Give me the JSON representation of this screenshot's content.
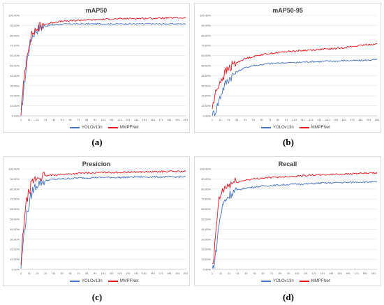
{
  "captions": [
    "(a)",
    "(b)",
    "(c)",
    "(d)"
  ],
  "colors": {
    "yolo": "#4472c4",
    "mmpf": "#e8141e",
    "grid": "#e3e3e3",
    "axis": "#bfbfbf"
  },
  "chart_data": [
    {
      "type": "line",
      "title": "mAP50",
      "y_ticks": [
        "0.00%",
        "10.00%",
        "20.00%",
        "30.00%",
        "40.00%",
        "50.00%",
        "60.00%",
        "70.00%",
        "80.00%",
        "90.00%",
        "100.00%"
      ],
      "x_ticks": [
        "1",
        "11",
        "21",
        "31",
        "41",
        "51",
        "61",
        "71",
        "81",
        "91",
        "101",
        "111",
        "121",
        "131",
        "141",
        "151",
        "161",
        "171",
        "181",
        "191",
        "201"
      ],
      "ylim": [
        0,
        1.0
      ],
      "xlim": [
        1,
        201
      ],
      "legend": [
        "YOLOv13n",
        "MMPFNet"
      ],
      "series": [
        {
          "name": "YOLOv13n",
          "x": [
            1,
            3,
            5,
            7,
            9,
            11,
            13,
            15,
            18,
            21,
            25,
            30,
            35,
            40,
            50,
            60,
            70,
            80,
            90,
            100,
            120,
            140,
            160,
            180,
            201
          ],
          "values": [
            0.02,
            0.15,
            0.3,
            0.45,
            0.58,
            0.68,
            0.75,
            0.8,
            0.84,
            0.86,
            0.88,
            0.89,
            0.9,
            0.905,
            0.91,
            0.915,
            0.915,
            0.915,
            0.915,
            0.915,
            0.915,
            0.915,
            0.915,
            0.915,
            0.915
          ]
        },
        {
          "name": "MMPFNet",
          "x": [
            1,
            3,
            5,
            7,
            9,
            11,
            13,
            15,
            18,
            21,
            25,
            30,
            35,
            40,
            50,
            60,
            70,
            80,
            90,
            100,
            120,
            140,
            160,
            180,
            201
          ],
          "values": [
            0.03,
            0.2,
            0.38,
            0.52,
            0.64,
            0.72,
            0.78,
            0.82,
            0.85,
            0.87,
            0.89,
            0.91,
            0.92,
            0.93,
            0.94,
            0.945,
            0.95,
            0.955,
            0.955,
            0.96,
            0.965,
            0.97,
            0.97,
            0.975,
            0.975
          ]
        }
      ]
    },
    {
      "type": "line",
      "title": "mAP50-95",
      "y_ticks": [
        "0.00%",
        "10.00%",
        "20.00%",
        "30.00%",
        "40.00%",
        "50.00%",
        "60.00%",
        "70.00%",
        "80.00%",
        "90.00%",
        "100.00%"
      ],
      "x_ticks": [
        "1",
        "11",
        "21",
        "31",
        "41",
        "51",
        "61",
        "71",
        "81",
        "91",
        "101",
        "111",
        "121",
        "131",
        "141",
        "151",
        "161",
        "171",
        "181",
        "191",
        "201"
      ],
      "ylim": [
        0,
        1.0
      ],
      "xlim": [
        1,
        201
      ],
      "legend": [
        "YOLOv13n",
        "MMPFNet"
      ],
      "series": [
        {
          "name": "YOLOv13n",
          "x": [
            1,
            5,
            9,
            13,
            17,
            21,
            25,
            31,
            41,
            51,
            61,
            71,
            81,
            91,
            101,
            111,
            121,
            131,
            141,
            151,
            161,
            171,
            181,
            191,
            201
          ],
          "values": [
            0.0,
            0.05,
            0.15,
            0.25,
            0.32,
            0.37,
            0.4,
            0.44,
            0.48,
            0.5,
            0.51,
            0.52,
            0.525,
            0.53,
            0.53,
            0.535,
            0.54,
            0.54,
            0.545,
            0.545,
            0.55,
            0.55,
            0.55,
            0.555,
            0.56
          ]
        },
        {
          "name": "MMPFNet",
          "x": [
            1,
            5,
            9,
            13,
            17,
            21,
            25,
            31,
            41,
            51,
            61,
            71,
            81,
            91,
            101,
            111,
            121,
            131,
            141,
            151,
            161,
            171,
            181,
            191,
            201
          ],
          "values": [
            0.08,
            0.22,
            0.32,
            0.38,
            0.43,
            0.47,
            0.5,
            0.53,
            0.57,
            0.59,
            0.61,
            0.62,
            0.63,
            0.64,
            0.645,
            0.65,
            0.655,
            0.66,
            0.665,
            0.67,
            0.68,
            0.69,
            0.7,
            0.71,
            0.715
          ]
        }
      ]
    },
    {
      "type": "line",
      "title": "Presicion",
      "y_ticks": [
        "0.00%",
        "10.00%",
        "20.00%",
        "30.00%",
        "40.00%",
        "50.00%",
        "60.00%",
        "70.00%",
        "80.00%",
        "90.00%",
        "100.00%"
      ],
      "x_ticks": [
        "1",
        "11",
        "21",
        "31",
        "41",
        "51",
        "61",
        "71",
        "81",
        "91",
        "101",
        "111",
        "121",
        "131",
        "141",
        "151",
        "161",
        "171",
        "181",
        "191",
        "201"
      ],
      "ylim": [
        0,
        1.0
      ],
      "xlim": [
        1,
        201
      ],
      "legend": [
        "YOLOv13n",
        "MMPFNet"
      ],
      "series": [
        {
          "name": "YOLOv13n",
          "x": [
            1,
            3,
            5,
            7,
            9,
            11,
            13,
            15,
            18,
            21,
            25,
            30,
            35,
            40,
            50,
            60,
            70,
            80,
            90,
            100,
            120,
            140,
            160,
            180,
            201
          ],
          "values": [
            0.02,
            0.2,
            0.38,
            0.5,
            0.58,
            0.65,
            0.72,
            0.78,
            0.82,
            0.85,
            0.87,
            0.88,
            0.89,
            0.895,
            0.9,
            0.905,
            0.91,
            0.91,
            0.915,
            0.915,
            0.915,
            0.92,
            0.92,
            0.92,
            0.92
          ]
        },
        {
          "name": "MMPFNet",
          "x": [
            1,
            3,
            5,
            7,
            9,
            11,
            13,
            15,
            18,
            21,
            25,
            30,
            35,
            40,
            50,
            60,
            70,
            80,
            90,
            100,
            120,
            140,
            160,
            180,
            201
          ],
          "values": [
            0.03,
            0.3,
            0.5,
            0.62,
            0.72,
            0.78,
            0.83,
            0.87,
            0.89,
            0.91,
            0.92,
            0.93,
            0.935,
            0.94,
            0.945,
            0.95,
            0.955,
            0.96,
            0.96,
            0.965,
            0.965,
            0.97,
            0.97,
            0.975,
            0.975
          ]
        }
      ]
    },
    {
      "type": "line",
      "title": "Recall",
      "y_ticks": [
        "0.00%",
        "10.00%",
        "20.00%",
        "30.00%",
        "40.00%",
        "50.00%",
        "60.00%",
        "70.00%",
        "80.00%",
        "90.00%",
        "100.00%"
      ],
      "x_ticks": [
        "1",
        "11",
        "21",
        "31",
        "41",
        "51",
        "61",
        "71",
        "81",
        "91",
        "101",
        "111",
        "121",
        "131",
        "141",
        "151",
        "161",
        "171",
        "181",
        "191"
      ],
      "ylim": [
        0,
        1.0
      ],
      "xlim": [
        1,
        195
      ],
      "legend": [
        "YOLOv13n",
        "MMPFNet"
      ],
      "series": [
        {
          "name": "YOLOv13n",
          "x": [
            1,
            3,
            5,
            7,
            9,
            11,
            13,
            15,
            18,
            21,
            25,
            31,
            41,
            51,
            61,
            71,
            81,
            91,
            101,
            111,
            121,
            131,
            141,
            151,
            161,
            171,
            181,
            195
          ],
          "values": [
            0.0,
            0.05,
            0.15,
            0.3,
            0.45,
            0.55,
            0.62,
            0.67,
            0.71,
            0.74,
            0.77,
            0.79,
            0.81,
            0.82,
            0.83,
            0.835,
            0.84,
            0.845,
            0.85,
            0.85,
            0.855,
            0.86,
            0.86,
            0.865,
            0.865,
            0.87,
            0.87,
            0.87
          ]
        },
        {
          "name": "MMPFNet",
          "x": [
            1,
            3,
            5,
            7,
            9,
            11,
            13,
            15,
            18,
            21,
            25,
            31,
            41,
            51,
            61,
            71,
            81,
            91,
            101,
            111,
            121,
            131,
            141,
            151,
            161,
            171,
            181,
            195
          ],
          "values": [
            0.02,
            0.1,
            0.35,
            0.55,
            0.68,
            0.74,
            0.78,
            0.8,
            0.82,
            0.84,
            0.86,
            0.87,
            0.89,
            0.9,
            0.91,
            0.915,
            0.92,
            0.925,
            0.93,
            0.935,
            0.94,
            0.94,
            0.945,
            0.95,
            0.95,
            0.955,
            0.955,
            0.96
          ]
        }
      ]
    }
  ]
}
